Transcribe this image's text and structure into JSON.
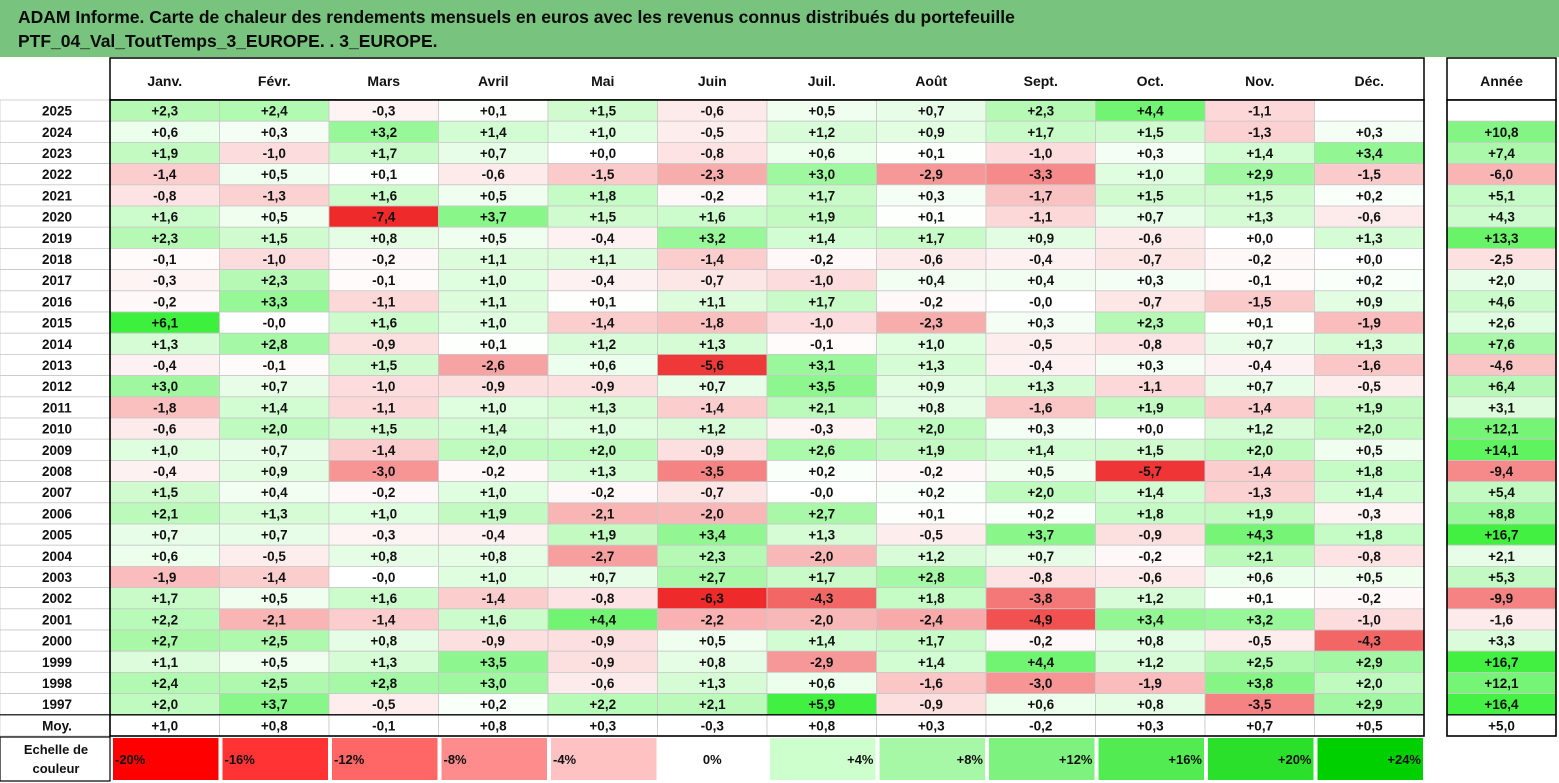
{
  "title": {
    "line1": "ADAM Informe. Carte de chaleur des rendements mensuels en euros avec les revenus connus distribués du portefeuille",
    "line2": "PTF_04_Val_ToutTemps_3_EUROPE. . 3_EUROPE."
  },
  "chart_data": {
    "type": "heatmap",
    "title": "Carte de chaleur des rendements mensuels en euros avec les revenus connus distribués du portefeuille",
    "columns": [
      "Janv.",
      "Févr.",
      "Mars",
      "Avril",
      "Mai",
      "Juin",
      "Juil.",
      "Août",
      "Sept.",
      "Oct.",
      "Nov.",
      "Déc."
    ],
    "total_label": "Année",
    "rows": [
      {
        "year": "2025",
        "values": [
          "+2,3",
          "+2,4",
          "-0,3",
          "+0,1",
          "+1,5",
          "-0,6",
          "+0,5",
          "+0,7",
          "+2,3",
          "+4,4",
          "-1,1",
          ""
        ],
        "total": ""
      },
      {
        "year": "2024",
        "values": [
          "+0,6",
          "+0,3",
          "+3,2",
          "+1,4",
          "+1,0",
          "-0,5",
          "+1,2",
          "+0,9",
          "+1,7",
          "+1,5",
          "-1,3",
          "+0,3"
        ],
        "total": "+10,8"
      },
      {
        "year": "2023",
        "values": [
          "+1,9",
          "-1,0",
          "+1,7",
          "+0,7",
          "+0,0",
          "-0,8",
          "+0,6",
          "+0,1",
          "-1,0",
          "+0,3",
          "+1,4",
          "+3,4"
        ],
        "total": "+7,4"
      },
      {
        "year": "2022",
        "values": [
          "-1,4",
          "+0,5",
          "+0,1",
          "-0,6",
          "-1,5",
          "-2,3",
          "+3,0",
          "-2,9",
          "-3,3",
          "+1,0",
          "+2,9",
          "-1,5"
        ],
        "total": "-6,0"
      },
      {
        "year": "2021",
        "values": [
          "-0,8",
          "-1,3",
          "+1,6",
          "+0,5",
          "+1,8",
          "-0,2",
          "+1,7",
          "+0,3",
          "-1,7",
          "+1,5",
          "+1,5",
          "+0,2"
        ],
        "total": "+5,1"
      },
      {
        "year": "2020",
        "values": [
          "+1,6",
          "+0,5",
          "-7,4",
          "+3,7",
          "+1,5",
          "+1,6",
          "+1,9",
          "+0,1",
          "-1,1",
          "+0,7",
          "+1,3",
          "-0,6"
        ],
        "total": "+4,3"
      },
      {
        "year": "2019",
        "values": [
          "+2,3",
          "+1,5",
          "+0,8",
          "+0,5",
          "-0,4",
          "+3,2",
          "+1,4",
          "+1,7",
          "+0,9",
          "-0,6",
          "+0,0",
          "+1,3"
        ],
        "total": "+13,3"
      },
      {
        "year": "2018",
        "values": [
          "-0,1",
          "-1,0",
          "-0,2",
          "+1,1",
          "+1,1",
          "-1,4",
          "-0,2",
          "-0,6",
          "-0,4",
          "-0,7",
          "-0,2",
          "+0,0"
        ],
        "total": "-2,5"
      },
      {
        "year": "2017",
        "values": [
          "-0,3",
          "+2,3",
          "-0,1",
          "+1,0",
          "-0,4",
          "-0,7",
          "-1,0",
          "+0,4",
          "+0,4",
          "+0,3",
          "-0,1",
          "+0,2"
        ],
        "total": "+2,0"
      },
      {
        "year": "2016",
        "values": [
          "-0,2",
          "+3,3",
          "-1,1",
          "+1,1",
          "+0,1",
          "+1,1",
          "+1,7",
          "-0,2",
          "-0,0",
          "-0,7",
          "-1,5",
          "+0,9"
        ],
        "total": "+4,6"
      },
      {
        "year": "2015",
        "values": [
          "+6,1",
          "-0,0",
          "+1,6",
          "+1,0",
          "-1,4",
          "-1,8",
          "-1,0",
          "-2,3",
          "+0,3",
          "+2,3",
          "+0,1",
          "-1,9"
        ],
        "total": "+2,6"
      },
      {
        "year": "2014",
        "values": [
          "+1,3",
          "+2,8",
          "-0,9",
          "+0,1",
          "+1,2",
          "+1,3",
          "-0,1",
          "+1,0",
          "-0,5",
          "-0,8",
          "+0,7",
          "+1,3"
        ],
        "total": "+7,6"
      },
      {
        "year": "2013",
        "values": [
          "-0,4",
          "-0,1",
          "+1,5",
          "-2,6",
          "+0,6",
          "-5,6",
          "+3,1",
          "+1,3",
          "-0,4",
          "+0,3",
          "-0,4",
          "-1,6"
        ],
        "total": "-4,6"
      },
      {
        "year": "2012",
        "values": [
          "+3,0",
          "+0,7",
          "-1,0",
          "-0,9",
          "-0,9",
          "+0,7",
          "+3,5",
          "+0,9",
          "+1,3",
          "-1,1",
          "+0,7",
          "-0,5"
        ],
        "total": "+6,4"
      },
      {
        "year": "2011",
        "values": [
          "-1,8",
          "+1,4",
          "-1,1",
          "+1,0",
          "+1,3",
          "-1,4",
          "+2,1",
          "+0,8",
          "-1,6",
          "+1,9",
          "-1,4",
          "+1,9"
        ],
        "total": "+3,1"
      },
      {
        "year": "2010",
        "values": [
          "-0,6",
          "+2,0",
          "+1,5",
          "+1,4",
          "+1,0",
          "+1,2",
          "-0,3",
          "+2,0",
          "+0,3",
          "+0,0",
          "+1,2",
          "+2,0"
        ],
        "total": "+12,1"
      },
      {
        "year": "2009",
        "values": [
          "+1,0",
          "+0,7",
          "-1,4",
          "+2,0",
          "+2,0",
          "-0,9",
          "+2,6",
          "+1,9",
          "+1,4",
          "+1,5",
          "+2,0",
          "+0,5"
        ],
        "total": "+14,1"
      },
      {
        "year": "2008",
        "values": [
          "-0,4",
          "+0,9",
          "-3,0",
          "-0,2",
          "+1,3",
          "-3,5",
          "+0,2",
          "-0,2",
          "+0,5",
          "-5,7",
          "-1,4",
          "+1,8"
        ],
        "total": "-9,4"
      },
      {
        "year": "2007",
        "values": [
          "+1,5",
          "+0,4",
          "-0,2",
          "+1,0",
          "-0,2",
          "-0,7",
          "-0,0",
          "+0,2",
          "+2,0",
          "+1,4",
          "-1,3",
          "+1,4"
        ],
        "total": "+5,4"
      },
      {
        "year": "2006",
        "values": [
          "+2,1",
          "+1,3",
          "+1,0",
          "+1,9",
          "-2,1",
          "-2,0",
          "+2,7",
          "+0,1",
          "+0,2",
          "+1,8",
          "+1,9",
          "-0,3"
        ],
        "total": "+8,8"
      },
      {
        "year": "2005",
        "values": [
          "+0,7",
          "+0,7",
          "-0,3",
          "-0,4",
          "+1,9",
          "+3,4",
          "+1,3",
          "-0,5",
          "+3,7",
          "-0,9",
          "+4,3",
          "+1,8"
        ],
        "total": "+16,7"
      },
      {
        "year": "2004",
        "values": [
          "+0,6",
          "-0,5",
          "+0,8",
          "+0,8",
          "-2,7",
          "+2,3",
          "-2,0",
          "+1,2",
          "+0,7",
          "-0,2",
          "+2,1",
          "-0,8"
        ],
        "total": "+2,1"
      },
      {
        "year": "2003",
        "values": [
          "-1,9",
          "-1,4",
          "-0,0",
          "+1,0",
          "+0,7",
          "+2,7",
          "+1,7",
          "+2,8",
          "-0,8",
          "-0,6",
          "+0,6",
          "+0,5"
        ],
        "total": "+5,3"
      },
      {
        "year": "2002",
        "values": [
          "+1,7",
          "+0,5",
          "+1,6",
          "-1,4",
          "-0,8",
          "-6,3",
          "-4,3",
          "+1,8",
          "-3,8",
          "+1,2",
          "+0,1",
          "-0,2"
        ],
        "total": "-9,9"
      },
      {
        "year": "2001",
        "values": [
          "+2,2",
          "-2,1",
          "-1,4",
          "+1,6",
          "+4,4",
          "-2,2",
          "-2,0",
          "-2,4",
          "-4,9",
          "+3,4",
          "+3,2",
          "-1,0"
        ],
        "total": "-1,6"
      },
      {
        "year": "2000",
        "values": [
          "+2,7",
          "+2,5",
          "+0,8",
          "-0,9",
          "-0,9",
          "+0,5",
          "+1,4",
          "+1,7",
          "-0,2",
          "+0,8",
          "-0,5",
          "-4,3"
        ],
        "total": "+3,3"
      },
      {
        "year": "1999",
        "values": [
          "+1,1",
          "+0,5",
          "+1,3",
          "+3,5",
          "-0,9",
          "+0,8",
          "-2,9",
          "+1,4",
          "+4,4",
          "+1,2",
          "+2,5",
          "+2,9"
        ],
        "total": "+16,7"
      },
      {
        "year": "1998",
        "values": [
          "+2,4",
          "+2,5",
          "+2,8",
          "+3,0",
          "-0,6",
          "+1,3",
          "+0,6",
          "-1,6",
          "-3,0",
          "-1,9",
          "+3,8",
          "+2,0"
        ],
        "total": "+12,1"
      },
      {
        "year": "1997",
        "values": [
          "+2,0",
          "+3,7",
          "-0,5",
          "+0,2",
          "+2,2",
          "+2,1",
          "+5,9",
          "-0,9",
          "+0,6",
          "+0,8",
          "-3,5",
          "+2,9"
        ],
        "total": "+16,4"
      }
    ],
    "average": {
      "label": "Moy.",
      "values": [
        "+1,0",
        "+0,8",
        "-0,1",
        "+0,8",
        "+0,3",
        "-0,3",
        "+0,8",
        "+0,3",
        "-0,2",
        "+0,3",
        "+0,7",
        "+0,5"
      ],
      "total": "+5,0"
    },
    "scale": {
      "label_line1": "Echelle de",
      "label_line2": "couleur",
      "steps": [
        "-20%",
        "-16%",
        "-12%",
        "-8%",
        "-4%",
        "0%",
        "+4%",
        "+8%",
        "+12%",
        "+16%",
        "+20%",
        "+24%"
      ],
      "colors": [
        "#ff0000",
        "#ff3333",
        "#ff6666",
        "#ff8c8c",
        "#ffc2c2",
        "#ffffff",
        "#ccffcc",
        "#a6f7a6",
        "#7ef27e",
        "#52ec52",
        "#2be02b",
        "#00d000"
      ]
    },
    "monthly_color_max": 6,
    "annual_color_max": 17
  }
}
